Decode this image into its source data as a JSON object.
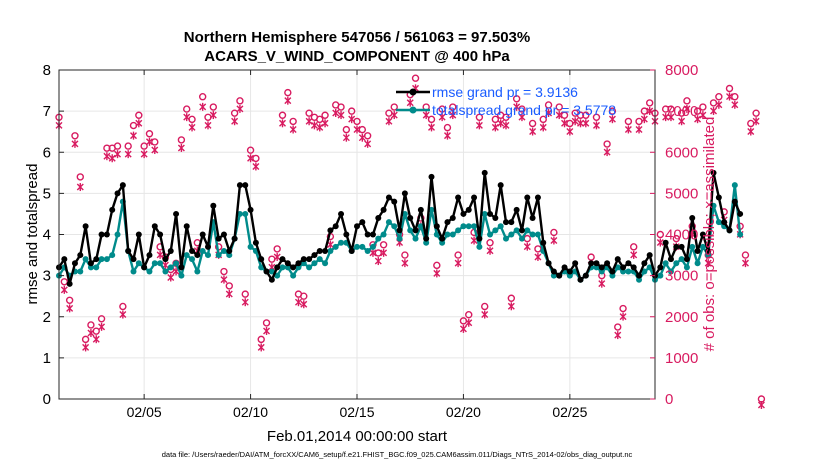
{
  "title_line1": "Northern Hemisphere 547056 / 561063 = 97.503%",
  "title_line2": "ACARS_V_WIND_COMPONENT @ 400 hPa",
  "xlabel": "Feb.01,2014 00:00:00 start",
  "ylabel_left": "rmse and totalspread",
  "ylabel_right": "# of obs: o=possible; ×=assimilated",
  "footnote": "data file: /Users/raeder/DAI/ATM_forcXX/CAM6_setup/f.e21.FHIST_BGC.f09_025.CAM6assim.011/Diags_NTrS_2014-02/obs_diag_output.nc",
  "legend": {
    "rmse": "rmse grand pr = 3.9136",
    "spread": "totalspread grand pr = 3.5778"
  },
  "colors": {
    "rmse": "#000000",
    "spread": "#008b8b",
    "obs": "#d81b60",
    "axis": "#262626",
    "grid": "#e6e6e6"
  },
  "chart_data": {
    "type": "line",
    "x_start_day": 1,
    "x_step_days": 0.25,
    "xlim": [
      1,
      29
    ],
    "ylim_left": [
      0,
      8
    ],
    "ylim_right": [
      0,
      8000
    ],
    "x_ticks": [
      5,
      10,
      15,
      20,
      25
    ],
    "x_tick_labels": [
      "02/05",
      "02/10",
      "02/15",
      "02/20",
      "02/25"
    ],
    "y_ticks_left": [
      0,
      1,
      2,
      3,
      4,
      5,
      6,
      7,
      8
    ],
    "y_ticks_right": [
      0,
      1000,
      2000,
      3000,
      4000,
      5000,
      6000,
      7000,
      8000
    ],
    "grid": true,
    "legend_position": "top-right",
    "series": [
      {
        "name": "rmse grand pr = 3.9136",
        "axis": "left",
        "values": [
          3.2,
          3.4,
          2.8,
          3.3,
          3.5,
          4.2,
          3.3,
          3.4,
          4.0,
          4.0,
          4.6,
          5.0,
          5.2,
          3.6,
          3.4,
          4.0,
          3.2,
          3.5,
          4.2,
          4.0,
          3.4,
          3.6,
          4.5,
          3.2,
          4.2,
          3.6,
          3.5,
          4.0,
          3.7,
          4.7,
          3.9,
          4.0,
          3.6,
          3.9,
          5.2,
          5.2,
          4.6,
          3.8,
          3.4,
          3.1,
          2.9,
          3.2,
          3.4,
          3.3,
          3.2,
          3.3,
          3.4,
          3.4,
          3.5,
          3.6,
          3.6,
          4.1,
          4.2,
          4.5,
          4.0,
          3.6,
          4.2,
          4.3,
          4.0,
          4.0,
          4.4,
          4.6,
          4.9,
          4.8,
          4.1,
          5.0,
          4.4,
          4.1,
          4.6,
          3.9,
          5.4,
          4.2,
          3.9,
          4.3,
          4.4,
          4.9,
          4.5,
          4.6,
          4.9,
          3.9,
          5.5,
          4.5,
          4.4,
          5.2,
          4.3,
          4.3,
          4.6,
          4.1,
          4.9,
          4.4,
          4.9,
          3.8,
          3.3,
          3.1,
          3.0,
          3.2,
          3.1,
          3.3,
          2.9,
          3.0,
          3.3,
          3.3,
          3.2,
          3.3,
          3.1,
          3.4,
          3.2,
          3.3,
          3.2,
          3.0,
          3.3,
          3.5,
          3.0,
          3.2,
          3.8,
          3.4,
          3.7,
          3.7,
          3.4,
          4.4,
          3.6,
          4.0,
          3.6,
          5.5,
          4.9,
          4.3,
          4.1,
          4.8,
          4.5
        ]
      },
      {
        "name": "totalspread grand pr = 3.5778",
        "axis": "left",
        "values": [
          3.0,
          3.2,
          3.0,
          3.1,
          3.1,
          3.4,
          3.2,
          3.2,
          3.4,
          3.4,
          3.5,
          4.0,
          4.8,
          3.6,
          3.1,
          3.3,
          3.2,
          3.1,
          3.3,
          3.3,
          3.1,
          3.2,
          3.3,
          3.0,
          3.5,
          3.4,
          3.1,
          3.6,
          3.5,
          4.3,
          3.5,
          3.6,
          3.5,
          3.9,
          4.5,
          4.5,
          3.7,
          3.6,
          3.2,
          3.1,
          3.1,
          3.0,
          3.2,
          3.2,
          3.0,
          3.2,
          3.3,
          3.2,
          3.3,
          3.4,
          3.3,
          3.6,
          3.7,
          3.8,
          3.8,
          3.6,
          3.7,
          3.7,
          3.6,
          3.7,
          3.9,
          4.0,
          4.3,
          4.2,
          3.9,
          4.5,
          4.1,
          3.9,
          4.2,
          3.8,
          4.6,
          4.0,
          3.8,
          4.0,
          4.0,
          4.1,
          4.2,
          4.2,
          4.2,
          3.7,
          4.5,
          4.0,
          4.1,
          4.2,
          3.9,
          4.0,
          4.1,
          3.9,
          4.1,
          4.0,
          4.0,
          3.6,
          3.3,
          3.0,
          3.0,
          3.1,
          3.0,
          3.1,
          2.9,
          3.0,
          3.2,
          3.2,
          3.1,
          3.2,
          3.0,
          3.2,
          3.1,
          3.1,
          3.1,
          2.9,
          3.1,
          3.2,
          2.9,
          3.0,
          3.3,
          3.1,
          3.3,
          3.4,
          3.2,
          3.7,
          3.3,
          3.7,
          3.5,
          4.7,
          4.3,
          4.2,
          4.1,
          5.2,
          4.0
        ]
      },
      {
        "name": "possible",
        "axis": "right",
        "values": [
          6850,
          2850,
          2400,
          6400,
          5400,
          1450,
          1800,
          1650,
          1950,
          6100,
          6100,
          6150,
          2250,
          6150,
          6650,
          6900,
          6150,
          6450,
          6250,
          3700,
          3450,
          3150,
          3300,
          6300,
          7050,
          6800,
          3800,
          7350,
          6850,
          7100,
          3700,
          3100,
          2750,
          6950,
          7250,
          2550,
          6050,
          5850,
          1450,
          1850,
          3400,
          3650,
          6900,
          7450,
          6750,
          2550,
          2500,
          6950,
          6850,
          6800,
          6900,
          3950,
          7150,
          7100,
          6550,
          7000,
          6750,
          6550,
          6400,
          3750,
          3550,
          3750,
          6950,
          7100,
          4000,
          3500,
          7400,
          7800,
          4400,
          7100,
          6800,
          3250,
          7050,
          6600,
          7100,
          3500,
          1900,
          2050,
          4050,
          6850,
          2250,
          3800,
          6800,
          6900,
          6850,
          2450,
          7300,
          7050,
          3900,
          6700,
          3650,
          6800,
          7150,
          4050,
          7100,
          6900,
          6700,
          6950,
          6900,
          6900,
          3450,
          6850,
          3000,
          6200,
          7000,
          1750,
          2200,
          6750,
          3700,
          6750,
          7000,
          7200,
          6950,
          4000,
          7050,
          7050,
          3900,
          6950,
          7250,
          4200,
          7000,
          7100,
          3500,
          7200,
          7350,
          4550,
          7550,
          7350,
          4200,
          3500,
          6700,
          6950,
          0
        ]
      },
      {
        "name": "assimilated",
        "axis": "right",
        "values": [
          6800,
          2800,
          2350,
          6350,
          5300,
          1400,
          1750,
          1600,
          1900,
          6050,
          6000,
          6100,
          2200,
          6100,
          6550,
          6850,
          6100,
          6400,
          6200,
          3650,
          3400,
          3100,
          3250,
          6250,
          7000,
          6750,
          3750,
          7250,
          6800,
          7050,
          3650,
          3050,
          2700,
          6900,
          7200,
          2500,
          6000,
          5800,
          1400,
          1800,
          3350,
          3600,
          6850,
          7400,
          6700,
          2500,
          2450,
          6900,
          6800,
          6750,
          6850,
          3900,
          7100,
          7050,
          6500,
          6950,
          6700,
          6500,
          6350,
          3700,
          3500,
          3700,
          6900,
          7050,
          3950,
          3450,
          7350,
          7700,
          4350,
          7050,
          6750,
          3200,
          7000,
          6550,
          7050,
          3450,
          1850,
          2000,
          4000,
          6800,
          2200,
          3750,
          6750,
          6850,
          6800,
          2400,
          7250,
          7000,
          3850,
          6650,
          3600,
          6750,
          7100,
          4000,
          7050,
          6850,
          6650,
          6900,
          6850,
          6850,
          3400,
          6800,
          2950,
          6150,
          6950,
          1700,
          2150,
          6700,
          3650,
          6700,
          6950,
          7150,
          6900,
          3950,
          7000,
          7000,
          3850,
          6900,
          7200,
          4150,
          6950,
          7050,
          3450,
          7150,
          7300,
          4500,
          7500,
          7300,
          4150,
          3450,
          6650,
          6900,
          0
        ]
      }
    ]
  }
}
